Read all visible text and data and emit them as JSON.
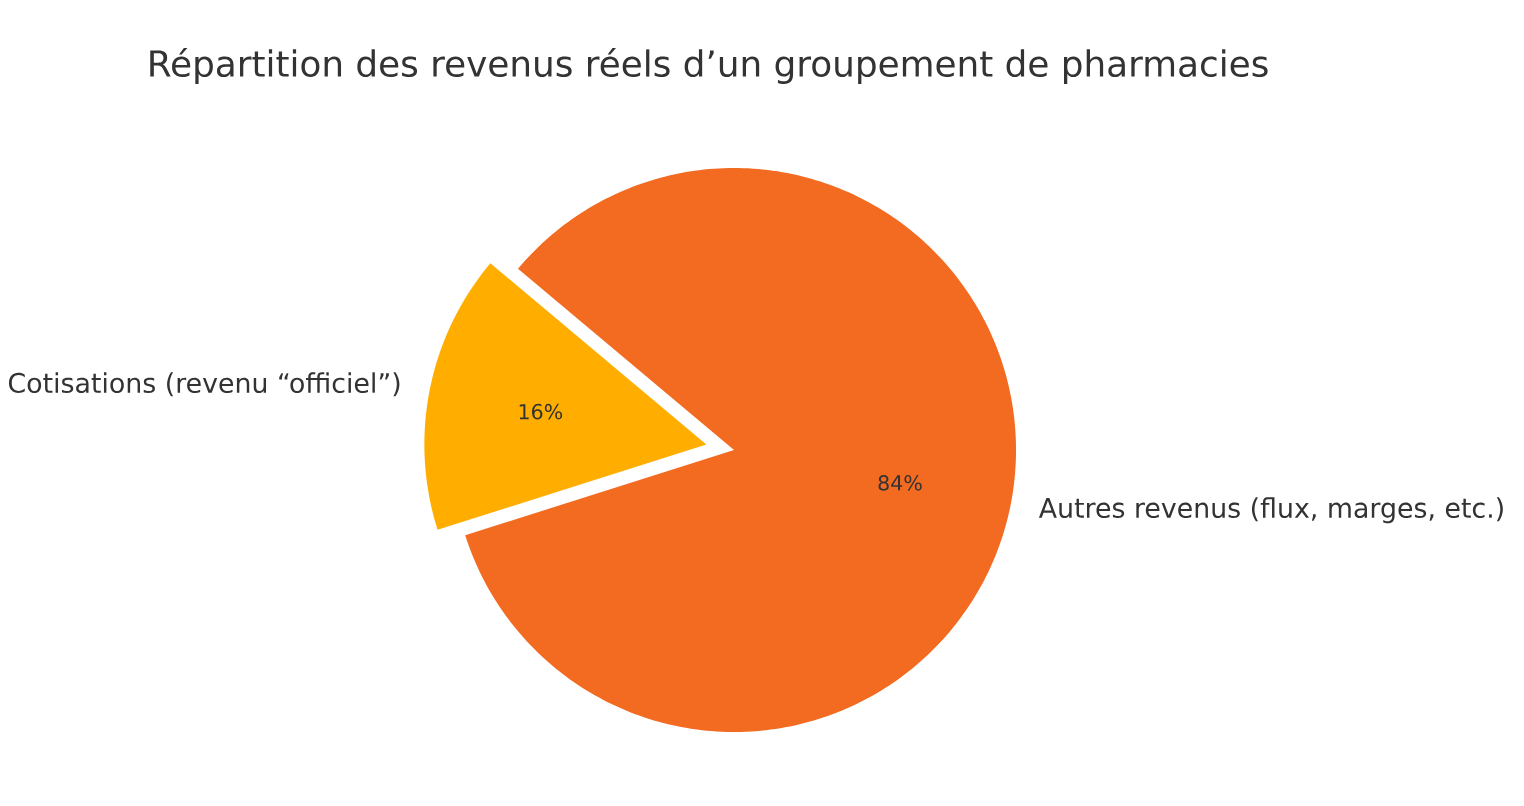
{
  "chart_data": {
    "type": "pie",
    "title": "Répartition des revenus réels d’un groupement de pharmacies",
    "categories": [
      "Cotisations (revenu “officiel”)",
      "Autres revenus (flux, marges, etc.)"
    ],
    "values": [
      16,
      84
    ],
    "colors": [
      "#ffae00",
      "#f26b21"
    ],
    "value_labels": [
      "16%",
      "84%"
    ]
  }
}
